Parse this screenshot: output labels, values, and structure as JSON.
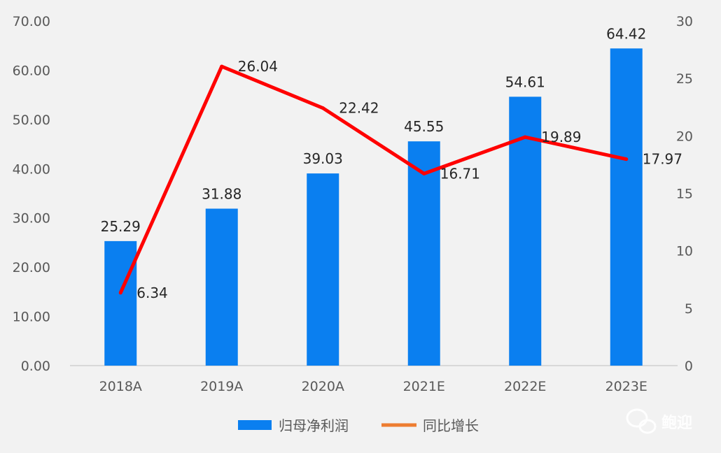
{
  "chart_data": {
    "type": "bar+line",
    "categories": [
      "2018A",
      "2019A",
      "2020A",
      "2021E",
      "2022E",
      "2023E"
    ],
    "series": [
      {
        "name": "归母净利润",
        "type": "bar",
        "axis": "left",
        "color": "#0a7ff0",
        "values": [
          25.29,
          31.88,
          39.03,
          45.55,
          54.61,
          64.42
        ],
        "labels": [
          "25.29",
          "31.88",
          "39.03",
          "45.55",
          "54.61",
          "64.42"
        ]
      },
      {
        "name": "同比增长",
        "type": "line",
        "axis": "right",
        "color": "#ff0000",
        "legend_color": "#ed7d31",
        "values": [
          6.34,
          26.04,
          22.42,
          16.71,
          19.89,
          17.97
        ],
        "labels": [
          "6.34",
          "26.04",
          "22.42",
          "16.71",
          "19.89",
          "17.97"
        ]
      }
    ],
    "y_left": {
      "ylim": [
        0,
        70
      ],
      "ticks": [
        "0.00",
        "10.00",
        "20.00",
        "30.00",
        "40.00",
        "50.00",
        "60.00",
        "70.00"
      ]
    },
    "y_right": {
      "ylim": [
        0,
        30
      ],
      "ticks": [
        "0",
        "5",
        "10",
        "15",
        "20",
        "25",
        "30"
      ]
    },
    "grid": false,
    "legend": "bottom"
  },
  "watermark": {
    "text": "鲍迎",
    "icon": "wechat-icon"
  }
}
